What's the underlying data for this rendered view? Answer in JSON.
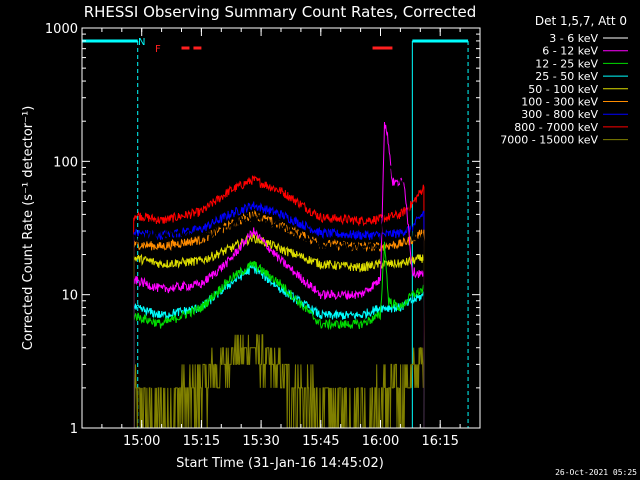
{
  "chart_data": {
    "type": "line",
    "title": "RHESSI Observing Summary Count Rates, Corrected",
    "xlabel": "Start Time (31-Jan-16 14:45:02)",
    "ylabel": "Corrected Count Rate (s⁻¹ detector⁻¹)",
    "yscale": "log",
    "ylim": [
      1,
      1000
    ],
    "xlim": [
      "14:45",
      "16:25"
    ],
    "x_ticks": [
      "15:00",
      "15:15",
      "15:30",
      "15:45",
      "16:00",
      "16:15"
    ],
    "y_ticks": [
      "1",
      "10",
      "100",
      "1000"
    ],
    "legend_title": "Det 1,5,7, Att 0",
    "legend_position": "right",
    "timestamp": "26-Oct-2021 05:25",
    "annotations": {
      "night_label": "N",
      "flag_label": "F"
    },
    "night_intervals": [
      [
        "14:45",
        "14:59"
      ],
      [
        "16:08",
        "16:22"
      ]
    ],
    "flare_flag_intervals": [
      [
        "15:10",
        "15:12"
      ],
      [
        "15:13",
        "15:15"
      ],
      [
        "15:58",
        "16:03"
      ]
    ],
    "series": [
      {
        "name": "3 - 6 keV",
        "color": "#000000",
        "start": "14:58",
        "end": "16:11",
        "values": [
          [
            "14:58",
            26
          ],
          [
            "15:05",
            29
          ],
          [
            "15:15",
            28
          ],
          [
            "15:20",
            30
          ],
          [
            "15:27",
            39
          ],
          [
            "15:35",
            33
          ],
          [
            "15:45",
            23
          ],
          [
            "15:55",
            23
          ],
          [
            "16:00",
            24
          ],
          [
            "16:02",
            100
          ],
          [
            "16:03",
            80
          ],
          [
            "16:05",
            70
          ],
          [
            "16:06",
            75
          ],
          [
            "16:08",
            27
          ],
          [
            "16:11",
            27
          ]
        ]
      },
      {
        "name": "6 - 12 keV",
        "color": "#ff00ff",
        "start": "14:58",
        "end": "16:11",
        "values": [
          [
            "14:58",
            13
          ],
          [
            "15:05",
            11
          ],
          [
            "15:15",
            12
          ],
          [
            "15:22",
            18
          ],
          [
            "15:28",
            30
          ],
          [
            "15:35",
            18
          ],
          [
            "15:45",
            10
          ],
          [
            "15:55",
            10
          ],
          [
            "16:00",
            13
          ],
          [
            "16:01",
            200
          ],
          [
            "16:02",
            140
          ],
          [
            "16:03",
            70
          ],
          [
            "16:06",
            70
          ],
          [
            "16:08",
            15
          ],
          [
            "16:11",
            14
          ]
        ]
      },
      {
        "name": "12 - 25 keV",
        "color": "#00dd00",
        "start": "14:58",
        "end": "16:11",
        "values": [
          [
            "14:58",
            7
          ],
          [
            "15:05",
            6
          ],
          [
            "15:15",
            8
          ],
          [
            "15:22",
            13
          ],
          [
            "15:28",
            17
          ],
          [
            "15:35",
            12
          ],
          [
            "15:45",
            6
          ],
          [
            "15:55",
            6
          ],
          [
            "16:00",
            7
          ],
          [
            "16:01",
            25
          ],
          [
            "16:02",
            9
          ],
          [
            "16:05",
            8
          ],
          [
            "16:08",
            10
          ],
          [
            "16:11",
            11
          ]
        ]
      },
      {
        "name": "25 - 50 keV",
        "color": "#00ffff",
        "start": "14:58",
        "end": "16:11",
        "values": [
          [
            "14:58",
            8
          ],
          [
            "15:05",
            7
          ],
          [
            "15:15",
            8
          ],
          [
            "15:22",
            12
          ],
          [
            "15:28",
            16
          ],
          [
            "15:35",
            11
          ],
          [
            "15:45",
            7
          ],
          [
            "15:55",
            7
          ],
          [
            "16:00",
            8
          ],
          [
            "16:05",
            8
          ],
          [
            "16:08",
            9
          ],
          [
            "16:11",
            10
          ]
        ]
      },
      {
        "name": "50 - 100 keV",
        "color": "#dddd00",
        "start": "14:58",
        "end": "16:11",
        "values": [
          [
            "14:58",
            19
          ],
          [
            "15:05",
            17
          ],
          [
            "15:15",
            18
          ],
          [
            "15:22",
            22
          ],
          [
            "15:28",
            27
          ],
          [
            "15:35",
            22
          ],
          [
            "15:45",
            17
          ],
          [
            "15:55",
            16
          ],
          [
            "16:00",
            17
          ],
          [
            "16:05",
            17
          ],
          [
            "16:08",
            18
          ],
          [
            "16:11",
            19
          ]
        ]
      },
      {
        "name": "100 - 300 keV",
        "color": "#ff8c00",
        "start": "14:58",
        "end": "16:11",
        "values": [
          [
            "14:58",
            24
          ],
          [
            "15:05",
            23
          ],
          [
            "15:15",
            26
          ],
          [
            "15:22",
            33
          ],
          [
            "15:28",
            40
          ],
          [
            "15:35",
            33
          ],
          [
            "15:45",
            24
          ],
          [
            "15:55",
            23
          ],
          [
            "16:00",
            23
          ],
          [
            "16:05",
            24
          ],
          [
            "16:08",
            26
          ],
          [
            "16:11",
            30
          ]
        ]
      },
      {
        "name": "300 - 800 keV",
        "color": "#0000ff",
        "start": "14:58",
        "end": "16:11",
        "values": [
          [
            "14:58",
            29
          ],
          [
            "15:05",
            28
          ],
          [
            "15:15",
            31
          ],
          [
            "15:22",
            40
          ],
          [
            "15:28",
            47
          ],
          [
            "15:35",
            40
          ],
          [
            "15:45",
            29
          ],
          [
            "15:55",
            28
          ],
          [
            "16:00",
            28
          ],
          [
            "16:05",
            29
          ],
          [
            "16:08",
            32
          ],
          [
            "16:11",
            42
          ]
        ]
      },
      {
        "name": "800 - 7000 keV",
        "color": "#ff0000",
        "start": "14:58",
        "end": "16:11",
        "values": [
          [
            "14:58",
            40
          ],
          [
            "15:05",
            36
          ],
          [
            "15:15",
            42
          ],
          [
            "15:22",
            60
          ],
          [
            "15:28",
            73
          ],
          [
            "15:35",
            60
          ],
          [
            "15:45",
            38
          ],
          [
            "15:55",
            36
          ],
          [
            "16:00",
            37
          ],
          [
            "16:05",
            40
          ],
          [
            "16:08",
            48
          ],
          [
            "16:11",
            65
          ]
        ]
      },
      {
        "name": "7000 - 15000 keV",
        "color": "#808000",
        "start": "14:58",
        "end": "16:11",
        "values": [
          [
            "14:58",
            1.5
          ],
          [
            "15:05",
            1.2
          ],
          [
            "15:15",
            2
          ],
          [
            "15:22",
            3.5
          ],
          [
            "15:28",
            4
          ],
          [
            "15:35",
            2.5
          ],
          [
            "15:45",
            1.2
          ],
          [
            "15:55",
            1.2
          ],
          [
            "16:00",
            1.5
          ],
          [
            "16:05",
            2
          ],
          [
            "16:08",
            2.5
          ],
          [
            "16:11",
            3
          ]
        ]
      }
    ]
  }
}
